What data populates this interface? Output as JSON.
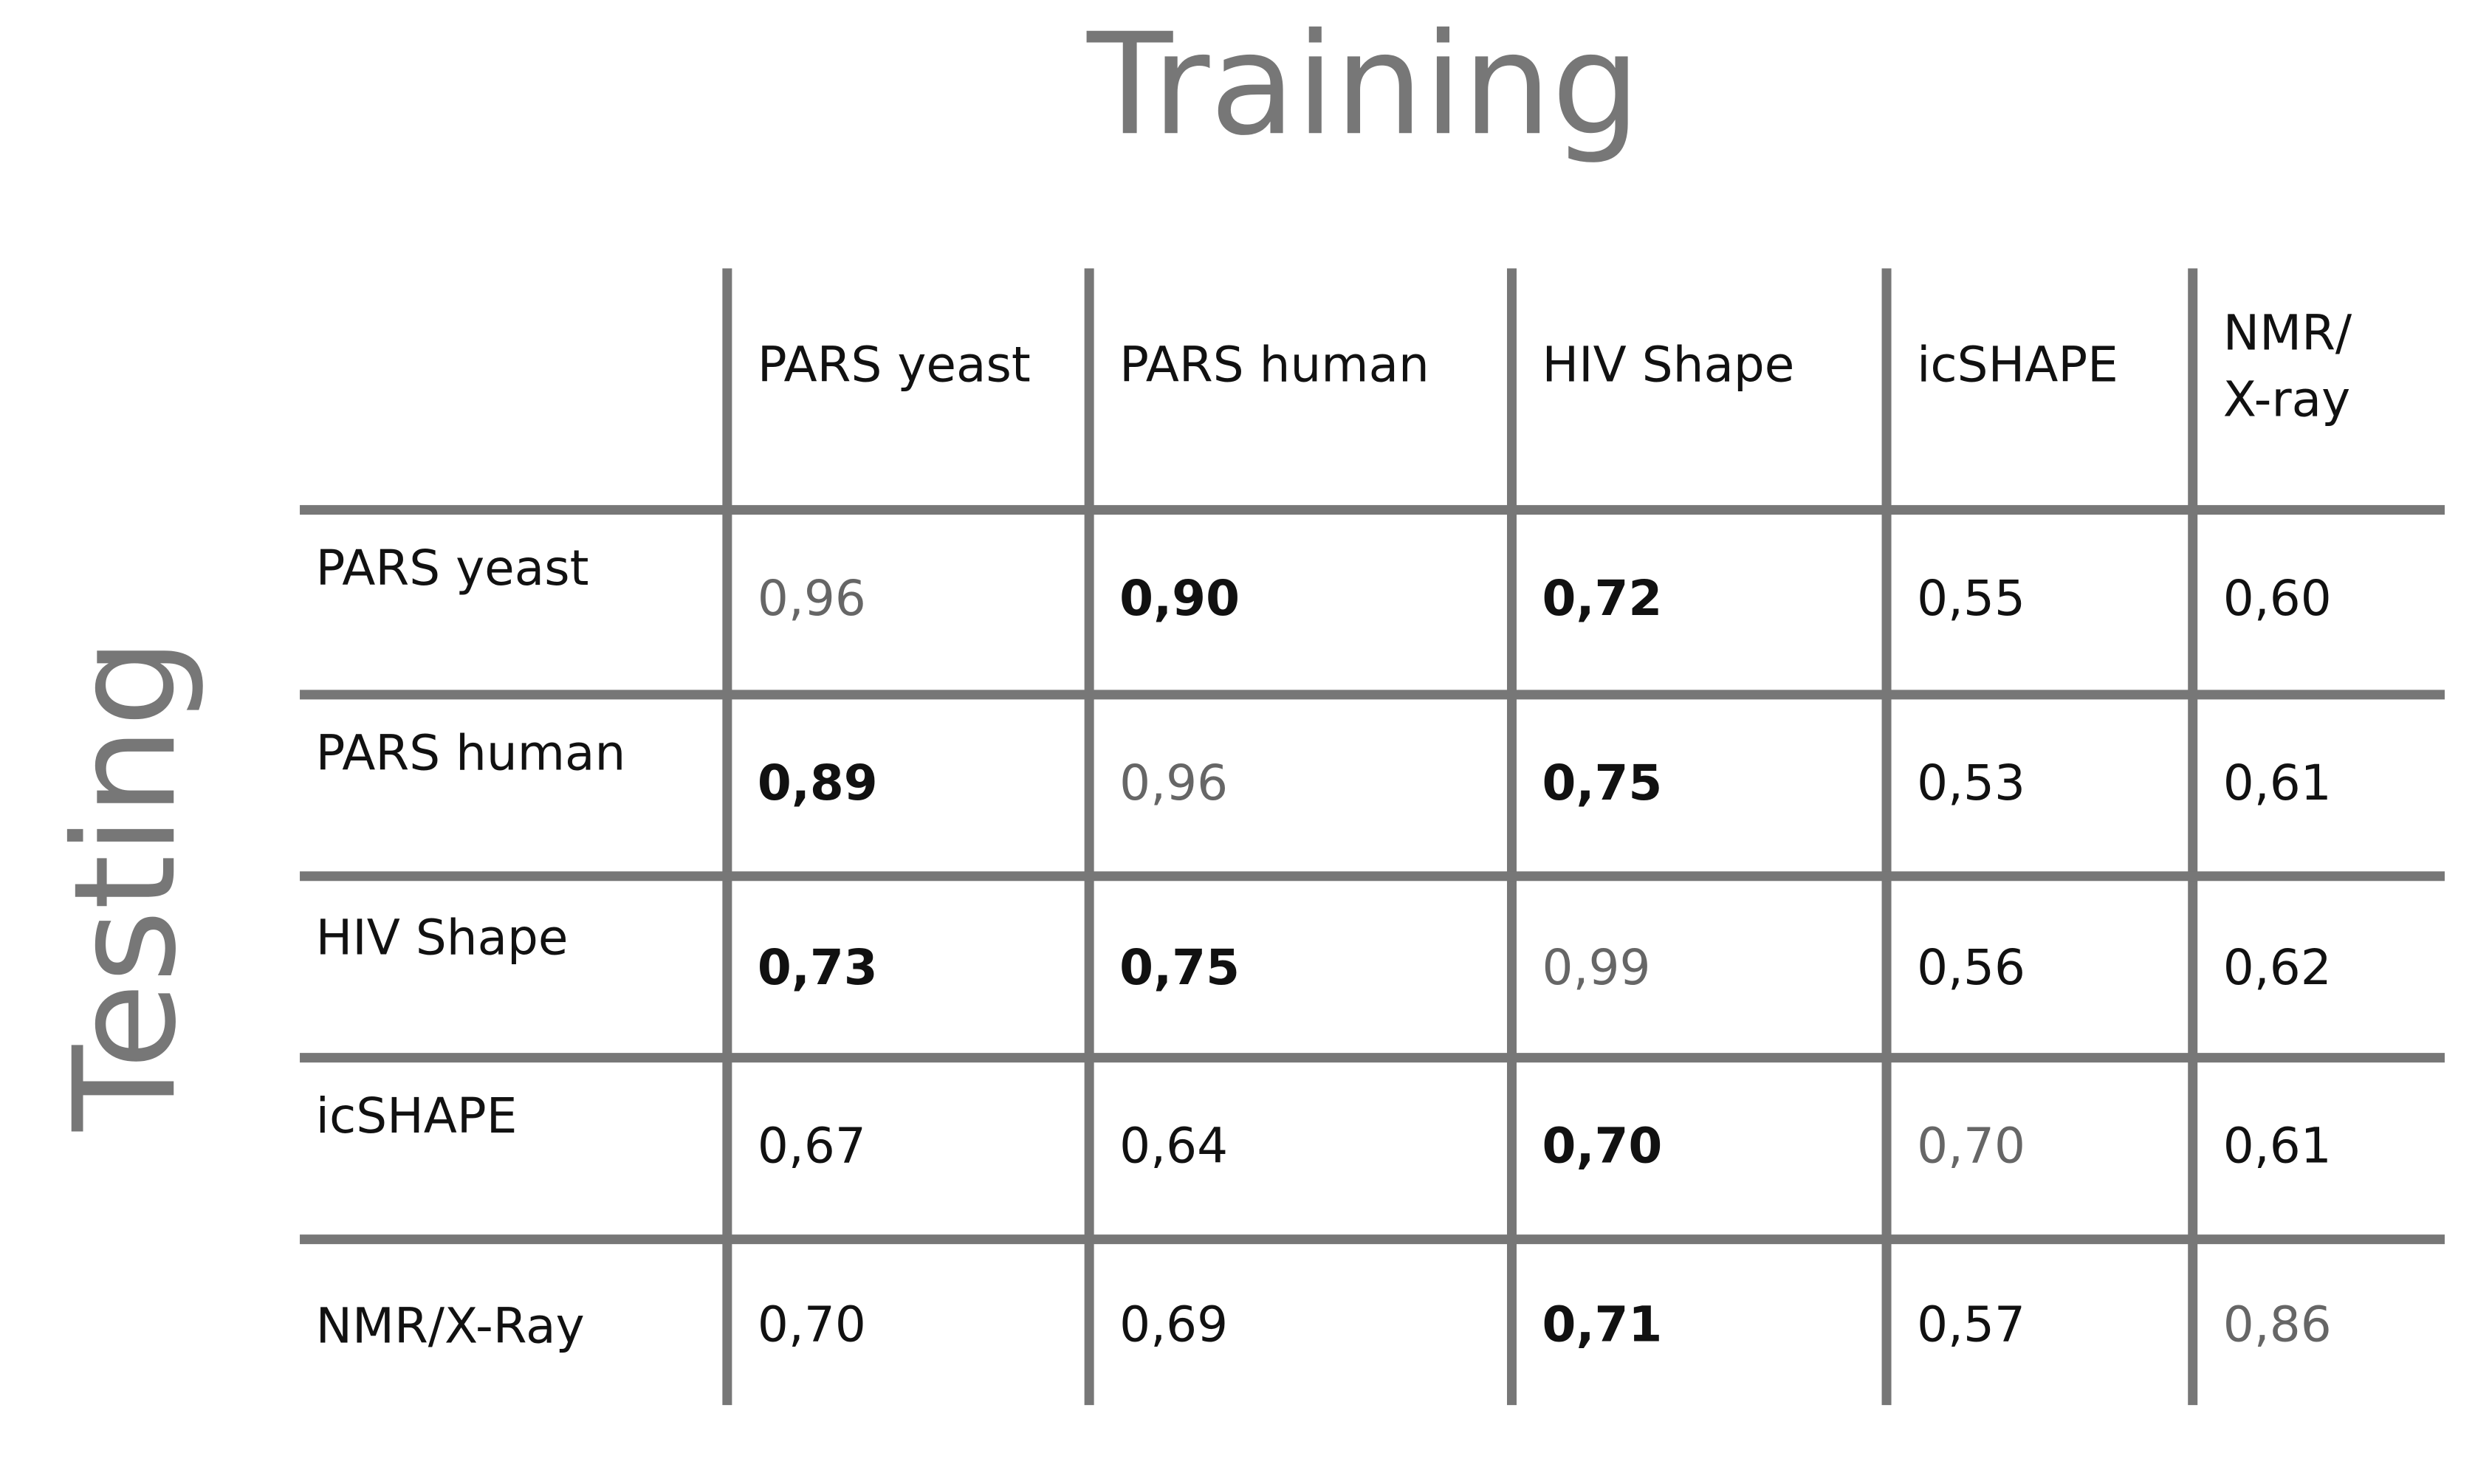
{
  "header": {
    "title": "Training",
    "side_label": "Testing"
  },
  "table": {
    "columns": [
      [
        "PARS yeast"
      ],
      [
        "PARS human"
      ],
      [
        "HIV Shape"
      ],
      [
        "icSHAPE"
      ],
      [
        "NMR/",
        "X-ray"
      ]
    ],
    "rows": [
      {
        "label": "PARS yeast",
        "cells": [
          {
            "text": "0,96",
            "bold": false,
            "color": "#666666"
          },
          {
            "text": "0,90",
            "bold": true,
            "color": "#111111"
          },
          {
            "text": "0,72",
            "bold": true,
            "color": "#111111"
          },
          {
            "text": "0,55",
            "bold": false,
            "color": "#111111"
          },
          {
            "text": "0,60",
            "bold": false,
            "color": "#111111"
          }
        ]
      },
      {
        "label": "PARS human",
        "cells": [
          {
            "text": "0,89",
            "bold": true,
            "color": "#111111"
          },
          {
            "text": "0,96",
            "bold": false,
            "color": "#666666"
          },
          {
            "text": "0,75",
            "bold": true,
            "color": "#111111"
          },
          {
            "text": "0,53",
            "bold": false,
            "color": "#111111"
          },
          {
            "text": "0,61",
            "bold": false,
            "color": "#111111"
          }
        ]
      },
      {
        "label": "HIV Shape",
        "cells": [
          {
            "text": "0,73",
            "bold": true,
            "color": "#111111"
          },
          {
            "text": "0,75",
            "bold": true,
            "color": "#111111"
          },
          {
            "text": "0,99",
            "bold": false,
            "color": "#666666"
          },
          {
            "text": "0,56",
            "bold": false,
            "color": "#111111"
          },
          {
            "text": "0,62",
            "bold": false,
            "color": "#111111"
          }
        ]
      },
      {
        "label": "icSHAPE",
        "cells": [
          {
            "text": "0,67",
            "bold": false,
            "color": "#111111"
          },
          {
            "text": "0,64",
            "bold": false,
            "color": "#111111"
          },
          {
            "text": "0,70",
            "bold": true,
            "color": "#111111"
          },
          {
            "text": "0,70",
            "bold": false,
            "color": "#666666"
          },
          {
            "text": "0,61",
            "bold": false,
            "color": "#111111"
          }
        ]
      },
      {
        "label": "NMR/X-Ray",
        "cells": [
          {
            "text": "0,70",
            "bold": false,
            "color": "#111111"
          },
          {
            "text": "0,69",
            "bold": false,
            "color": "#111111"
          },
          {
            "text": "0,71",
            "bold": true,
            "color": "#111111"
          },
          {
            "text": "0,57",
            "bold": false,
            "color": "#111111"
          },
          {
            "text": "0,86",
            "bold": false,
            "color": "#666666"
          }
        ]
      }
    ]
  }
}
